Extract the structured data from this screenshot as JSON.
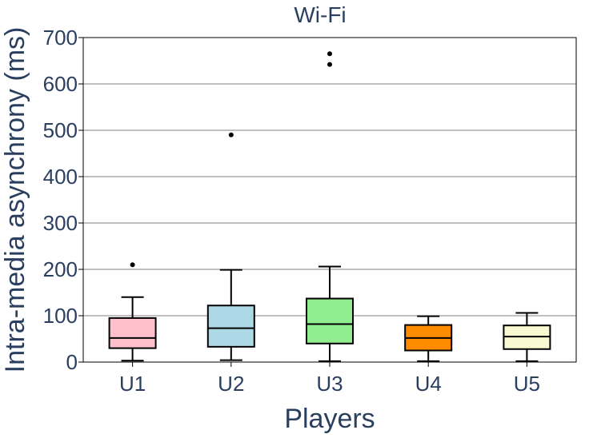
{
  "chart_data": {
    "type": "box",
    "title": "Wi-Fi",
    "xlabel": "Players",
    "ylabel": "Intra-media asynchrony (ms)",
    "ylim": [
      0,
      700
    ],
    "yticks": [
      0,
      100,
      200,
      300,
      400,
      500,
      600,
      700
    ],
    "grid": true,
    "categories": [
      "U1",
      "U2",
      "U3",
      "U4",
      "U5"
    ],
    "boxes": [
      {
        "name": "U1",
        "color": "#ffc0cb",
        "whisker_low": 3,
        "q1": 30,
        "median": 52,
        "q3": 95,
        "whisker_high": 140,
        "outliers": [
          210
        ]
      },
      {
        "name": "U2",
        "color": "#add8e6",
        "whisker_low": 4,
        "q1": 33,
        "median": 73,
        "q3": 122,
        "whisker_high": 199,
        "outliers": [
          490
        ]
      },
      {
        "name": "U3",
        "color": "#90ee90",
        "whisker_low": 2,
        "q1": 40,
        "median": 82,
        "q3": 137,
        "whisker_high": 206,
        "outliers": [
          642,
          665
        ]
      },
      {
        "name": "U4",
        "color": "#ff8c00",
        "whisker_low": 2,
        "q1": 25,
        "median": 52,
        "q3": 80,
        "whisker_high": 99,
        "outliers": []
      },
      {
        "name": "U5",
        "color": "#fafad2",
        "whisker_low": 2,
        "q1": 28,
        "median": 55,
        "q3": 79,
        "whisker_high": 106,
        "outliers": []
      }
    ]
  }
}
